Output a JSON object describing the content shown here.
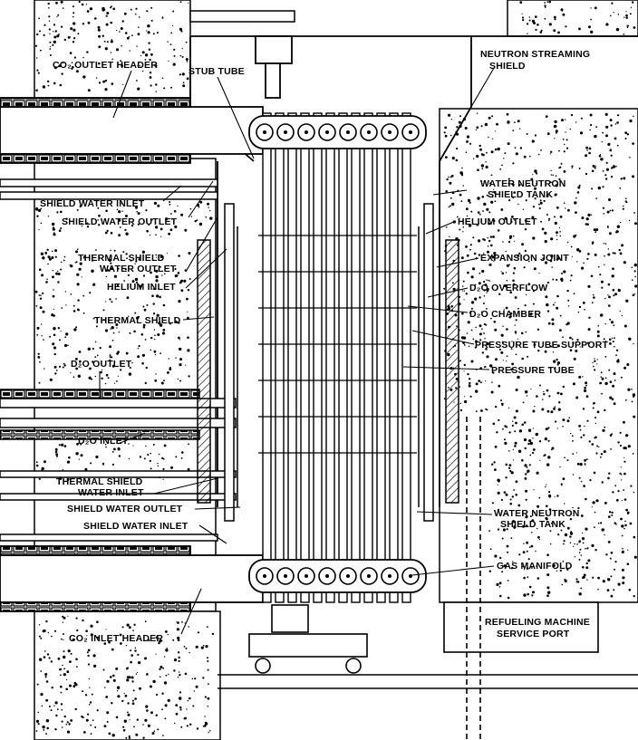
{
  "labels": {
    "co2_outlet_header": "CO₂ OUTLET HEADER",
    "stub_tube": "STUB TUBE",
    "neutron_streaming_shield_1": "NEUTRON STREAMING",
    "neutron_streaming_shield_2": "SHIELD",
    "water_neutron_shield_tank_top_1": "WATER NEUTRON",
    "water_neutron_shield_tank_top_2": "SHIELD TANK",
    "shield_water_inlet_top": "SHIELD WATER INLET",
    "shield_water_outlet_top": "SHIELD WATER OUTLET",
    "helium_outlet": "HELIUM OUTLET",
    "thermal_shield_water_outlet_1": "THERMAL SHIELD",
    "thermal_shield_water_outlet_2": "WATER OUTLET",
    "expansion_joint": "EXPANSION JOINT",
    "helium_inlet": "HELIUM INLET",
    "d2o_overflow": "D₂O OVERFLOW",
    "thermal_shield": "THERMAL SHIELD",
    "d2o_chamber": "D₂O CHAMBER",
    "pressure_tube_support": "PRESSURE TUBE SUPPORT",
    "d2o_outlet": "D₂O OUTLET",
    "pressure_tube": "PRESSURE TUBE",
    "d2o_inlet": "D₂O INLET",
    "thermal_shield_water_inlet_1": "THERMAL SHIELD",
    "thermal_shield_water_inlet_2": "WATER INLET",
    "shield_water_outlet_bottom": "SHIELD WATER OUTLET",
    "water_neutron_shield_tank_bottom_1": "WATER NEUTRON",
    "water_neutron_shield_tank_bottom_2": "SHIELD TANK",
    "shield_water_inlet_bottom": "SHIELD WATER INLET",
    "gas_manifold": "GAS MANIFOLD",
    "refueling_machine_service_port_1": "REFUELING MACHINE",
    "refueling_machine_service_port_2": "SERVICE PORT",
    "co2_inlet_header": "CO₂ INLET HEADER"
  },
  "colors": {
    "ink": "#000000",
    "paper": "#ffffff"
  }
}
